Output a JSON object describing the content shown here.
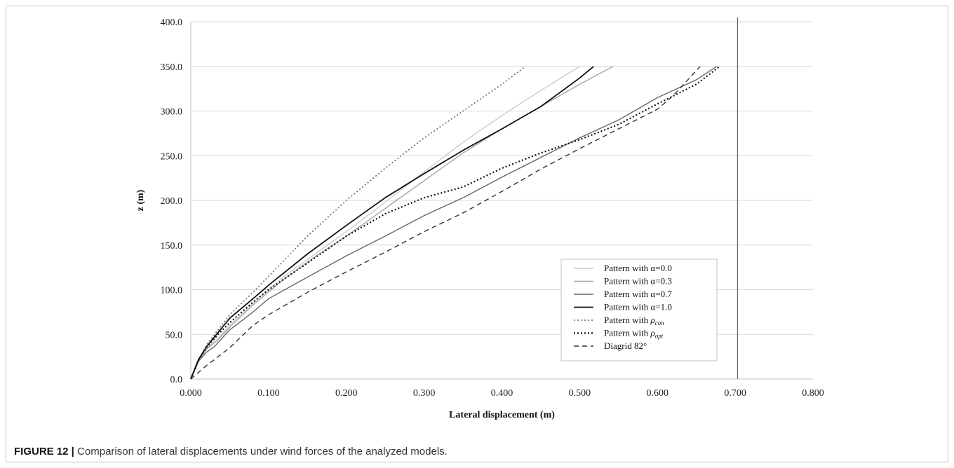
{
  "chart_data": {
    "type": "line",
    "xlabel": "Lateral displacement (m)",
    "ylabel": "z (m)",
    "xlim": [
      0.0,
      0.8
    ],
    "ylim": [
      0.0,
      400.0
    ],
    "x_ticks": [
      "0.000",
      "0.100",
      "0.200",
      "0.300",
      "0.400",
      "0.500",
      "0.600",
      "0.700",
      "0.800"
    ],
    "y_ticks": [
      "0.0",
      "50.0",
      "100.0",
      "150.0",
      "200.0",
      "250.0",
      "300.0",
      "350.0",
      "400.0"
    ],
    "grid": "horizontal",
    "legend_position": "bottom-right",
    "limit_line": {
      "x": 0.703,
      "color": "#e03030"
    },
    "series": [
      {
        "label_prefix": "Pattern with α=0.0",
        "label_sub": "",
        "color": "#cccccc",
        "dash": "solid",
        "width": 1.4,
        "points": [
          [
            0,
            0
          ],
          [
            0.01,
            20
          ],
          [
            0.02,
            34
          ],
          [
            0.035,
            45
          ],
          [
            0.05,
            60
          ],
          [
            0.08,
            85
          ],
          [
            0.12,
            115
          ],
          [
            0.16,
            140
          ],
          [
            0.2,
            165
          ],
          [
            0.25,
            198
          ],
          [
            0.3,
            232
          ],
          [
            0.35,
            265
          ],
          [
            0.4,
            295
          ],
          [
            0.45,
            323
          ],
          [
            0.5,
            350
          ]
        ]
      },
      {
        "label_prefix": "Pattern with α=0.3",
        "label_sub": "",
        "color": "#a6a6a6",
        "dash": "solid",
        "width": 1.4,
        "points": [
          [
            0,
            0
          ],
          [
            0.01,
            20
          ],
          [
            0.02,
            33
          ],
          [
            0.035,
            44
          ],
          [
            0.05,
            58
          ],
          [
            0.08,
            83
          ],
          [
            0.12,
            112
          ],
          [
            0.16,
            137
          ],
          [
            0.2,
            160
          ],
          [
            0.25,
            191
          ],
          [
            0.3,
            222
          ],
          [
            0.35,
            253
          ],
          [
            0.4,
            280
          ],
          [
            0.45,
            305
          ],
          [
            0.5,
            330
          ],
          [
            0.543,
            350
          ]
        ]
      },
      {
        "label_prefix": "Pattern with α=0.7",
        "label_sub": "",
        "color": "#666666",
        "dash": "solid",
        "width": 1.4,
        "points": [
          [
            0,
            0
          ],
          [
            0.01,
            20
          ],
          [
            0.02,
            30
          ],
          [
            0.03,
            36
          ],
          [
            0.05,
            55
          ],
          [
            0.08,
            75
          ],
          [
            0.1,
            90
          ],
          [
            0.15,
            114
          ],
          [
            0.2,
            138
          ],
          [
            0.25,
            160
          ],
          [
            0.3,
            183
          ],
          [
            0.35,
            203
          ],
          [
            0.4,
            226
          ],
          [
            0.45,
            248
          ],
          [
            0.5,
            270
          ],
          [
            0.55,
            290
          ],
          [
            0.6,
            315
          ],
          [
            0.65,
            335
          ],
          [
            0.676,
            350
          ]
        ]
      },
      {
        "label_prefix": "Pattern with α=1.0",
        "label_sub": "",
        "color": "#111111",
        "dash": "solid",
        "width": 1.8,
        "points": [
          [
            0,
            0
          ],
          [
            0.01,
            22
          ],
          [
            0.02,
            36
          ],
          [
            0.035,
            52
          ],
          [
            0.05,
            68
          ],
          [
            0.08,
            90
          ],
          [
            0.1,
            105
          ],
          [
            0.15,
            140
          ],
          [
            0.2,
            172
          ],
          [
            0.25,
            203
          ],
          [
            0.3,
            230
          ],
          [
            0.35,
            256
          ],
          [
            0.4,
            280
          ],
          [
            0.45,
            305
          ],
          [
            0.5,
            337
          ],
          [
            0.518,
            350
          ]
        ]
      },
      {
        "label_prefix": "Pattern with ",
        "label_sub": "con",
        "color": "#777777",
        "dash": "2,3",
        "width": 1.8,
        "points": [
          [
            0,
            0
          ],
          [
            0.01,
            20
          ],
          [
            0.02,
            38
          ],
          [
            0.035,
            55
          ],
          [
            0.05,
            72
          ],
          [
            0.08,
            97
          ],
          [
            0.1,
            115
          ],
          [
            0.15,
            160
          ],
          [
            0.2,
            200
          ],
          [
            0.25,
            236
          ],
          [
            0.3,
            270
          ],
          [
            0.35,
            300
          ],
          [
            0.4,
            330
          ],
          [
            0.43,
            350
          ]
        ]
      },
      {
        "label_prefix": "Pattern with ",
        "label_sub": "opt",
        "color": "#111111",
        "dash": "2,3",
        "width": 2.2,
        "points": [
          [
            0,
            0
          ],
          [
            0.01,
            22
          ],
          [
            0.02,
            35
          ],
          [
            0.035,
            50
          ],
          [
            0.05,
            63
          ],
          [
            0.08,
            86
          ],
          [
            0.1,
            100
          ],
          [
            0.15,
            130
          ],
          [
            0.2,
            160
          ],
          [
            0.25,
            185
          ],
          [
            0.3,
            203
          ],
          [
            0.35,
            215
          ],
          [
            0.4,
            236
          ],
          [
            0.45,
            253
          ],
          [
            0.5,
            268
          ],
          [
            0.55,
            285
          ],
          [
            0.6,
            308
          ],
          [
            0.65,
            330
          ],
          [
            0.68,
            350
          ]
        ]
      },
      {
        "label_prefix": "Diagrid 82°",
        "label_sub": "",
        "color": "#333333",
        "dash": "7,5",
        "width": 1.4,
        "points": [
          [
            0,
            0
          ],
          [
            0.02,
            15
          ],
          [
            0.05,
            35
          ],
          [
            0.08,
            60
          ],
          [
            0.1,
            72
          ],
          [
            0.15,
            97
          ],
          [
            0.2,
            120
          ],
          [
            0.25,
            142
          ],
          [
            0.3,
            165
          ],
          [
            0.35,
            186
          ],
          [
            0.4,
            210
          ],
          [
            0.45,
            235
          ],
          [
            0.5,
            258
          ],
          [
            0.55,
            280
          ],
          [
            0.6,
            302
          ],
          [
            0.62,
            317
          ],
          [
            0.655,
            350
          ]
        ]
      }
    ]
  },
  "caption": {
    "label": "FIGURE 12 |",
    "text": " Comparison of lateral displacements under wind forces of the analyzed models."
  }
}
